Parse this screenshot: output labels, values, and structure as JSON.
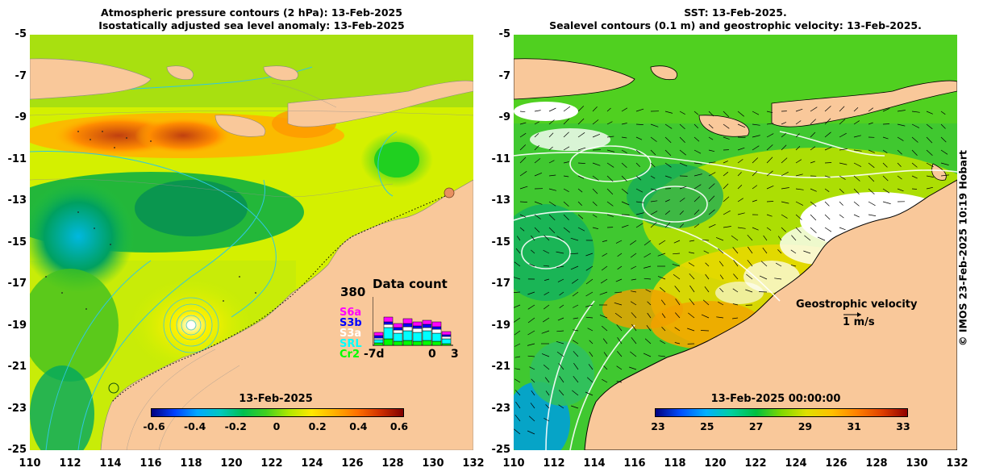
{
  "left": {
    "title_line1": "Atmospheric pressure contours (2 hPa): 13-Feb-2025",
    "title_line2": "Isostatically adjusted sea level anomaly: 13-Feb-2025",
    "colorbar_title": "13-Feb-2025",
    "colorbar_labels": [
      "-0.6",
      "-0.4",
      "-0.2",
      "0",
      "0.2",
      "0.4",
      "0.6"
    ],
    "data_count": {
      "title": "Data count",
      "max_label": "380",
      "axis_start": "-7d",
      "axis_zero": "0",
      "axis_end": "3",
      "satellites": [
        {
          "name": "S6a",
          "color": "#ff00ff"
        },
        {
          "name": "S3b",
          "color": "#0000ff"
        },
        {
          "name": "S3a",
          "color": "#ffffff"
        },
        {
          "name": "SRL",
          "color": "#00ffff"
        },
        {
          "name": "Cr2",
          "color": "#00ff00"
        }
      ]
    }
  },
  "right": {
    "title_line1": "SST: 13-Feb-2025.",
    "title_line2": "Sealevel contours (0.1 m) and geostrophic velocity: 13-Feb-2025.",
    "colorbar_title": "13-Feb-2025 00:00:00",
    "colorbar_labels": [
      "23",
      "25",
      "27",
      "29",
      "31",
      "33"
    ],
    "velocity_legend": "Geostrophic velocity",
    "velocity_scale": "1 m/s"
  },
  "axes": {
    "lat_labels": [
      "-5",
      "-7",
      "-9",
      "-11",
      "-13",
      "-15",
      "-17",
      "-19",
      "-21",
      "-23",
      "-25"
    ],
    "lon_labels": [
      "110",
      "112",
      "114",
      "116",
      "118",
      "120",
      "122",
      "124",
      "126",
      "128",
      "130",
      "132"
    ],
    "lat_range": [
      -25,
      -5
    ],
    "lon_range": [
      110,
      132
    ]
  },
  "credit": "© IMOS 23-Feb-2025 10:19 Hobart",
  "colors": {
    "land": "#f9c89a",
    "sla_gradient": [
      "#0000a0",
      "#00c8ff",
      "#00d060",
      "#80e020",
      "#ffe000",
      "#ff8000",
      "#a01000"
    ],
    "sst_gradient": [
      "#000080",
      "#00a0ff",
      "#00d060",
      "#a0e000",
      "#ffd000",
      "#ff8000",
      "#a00000"
    ]
  }
}
